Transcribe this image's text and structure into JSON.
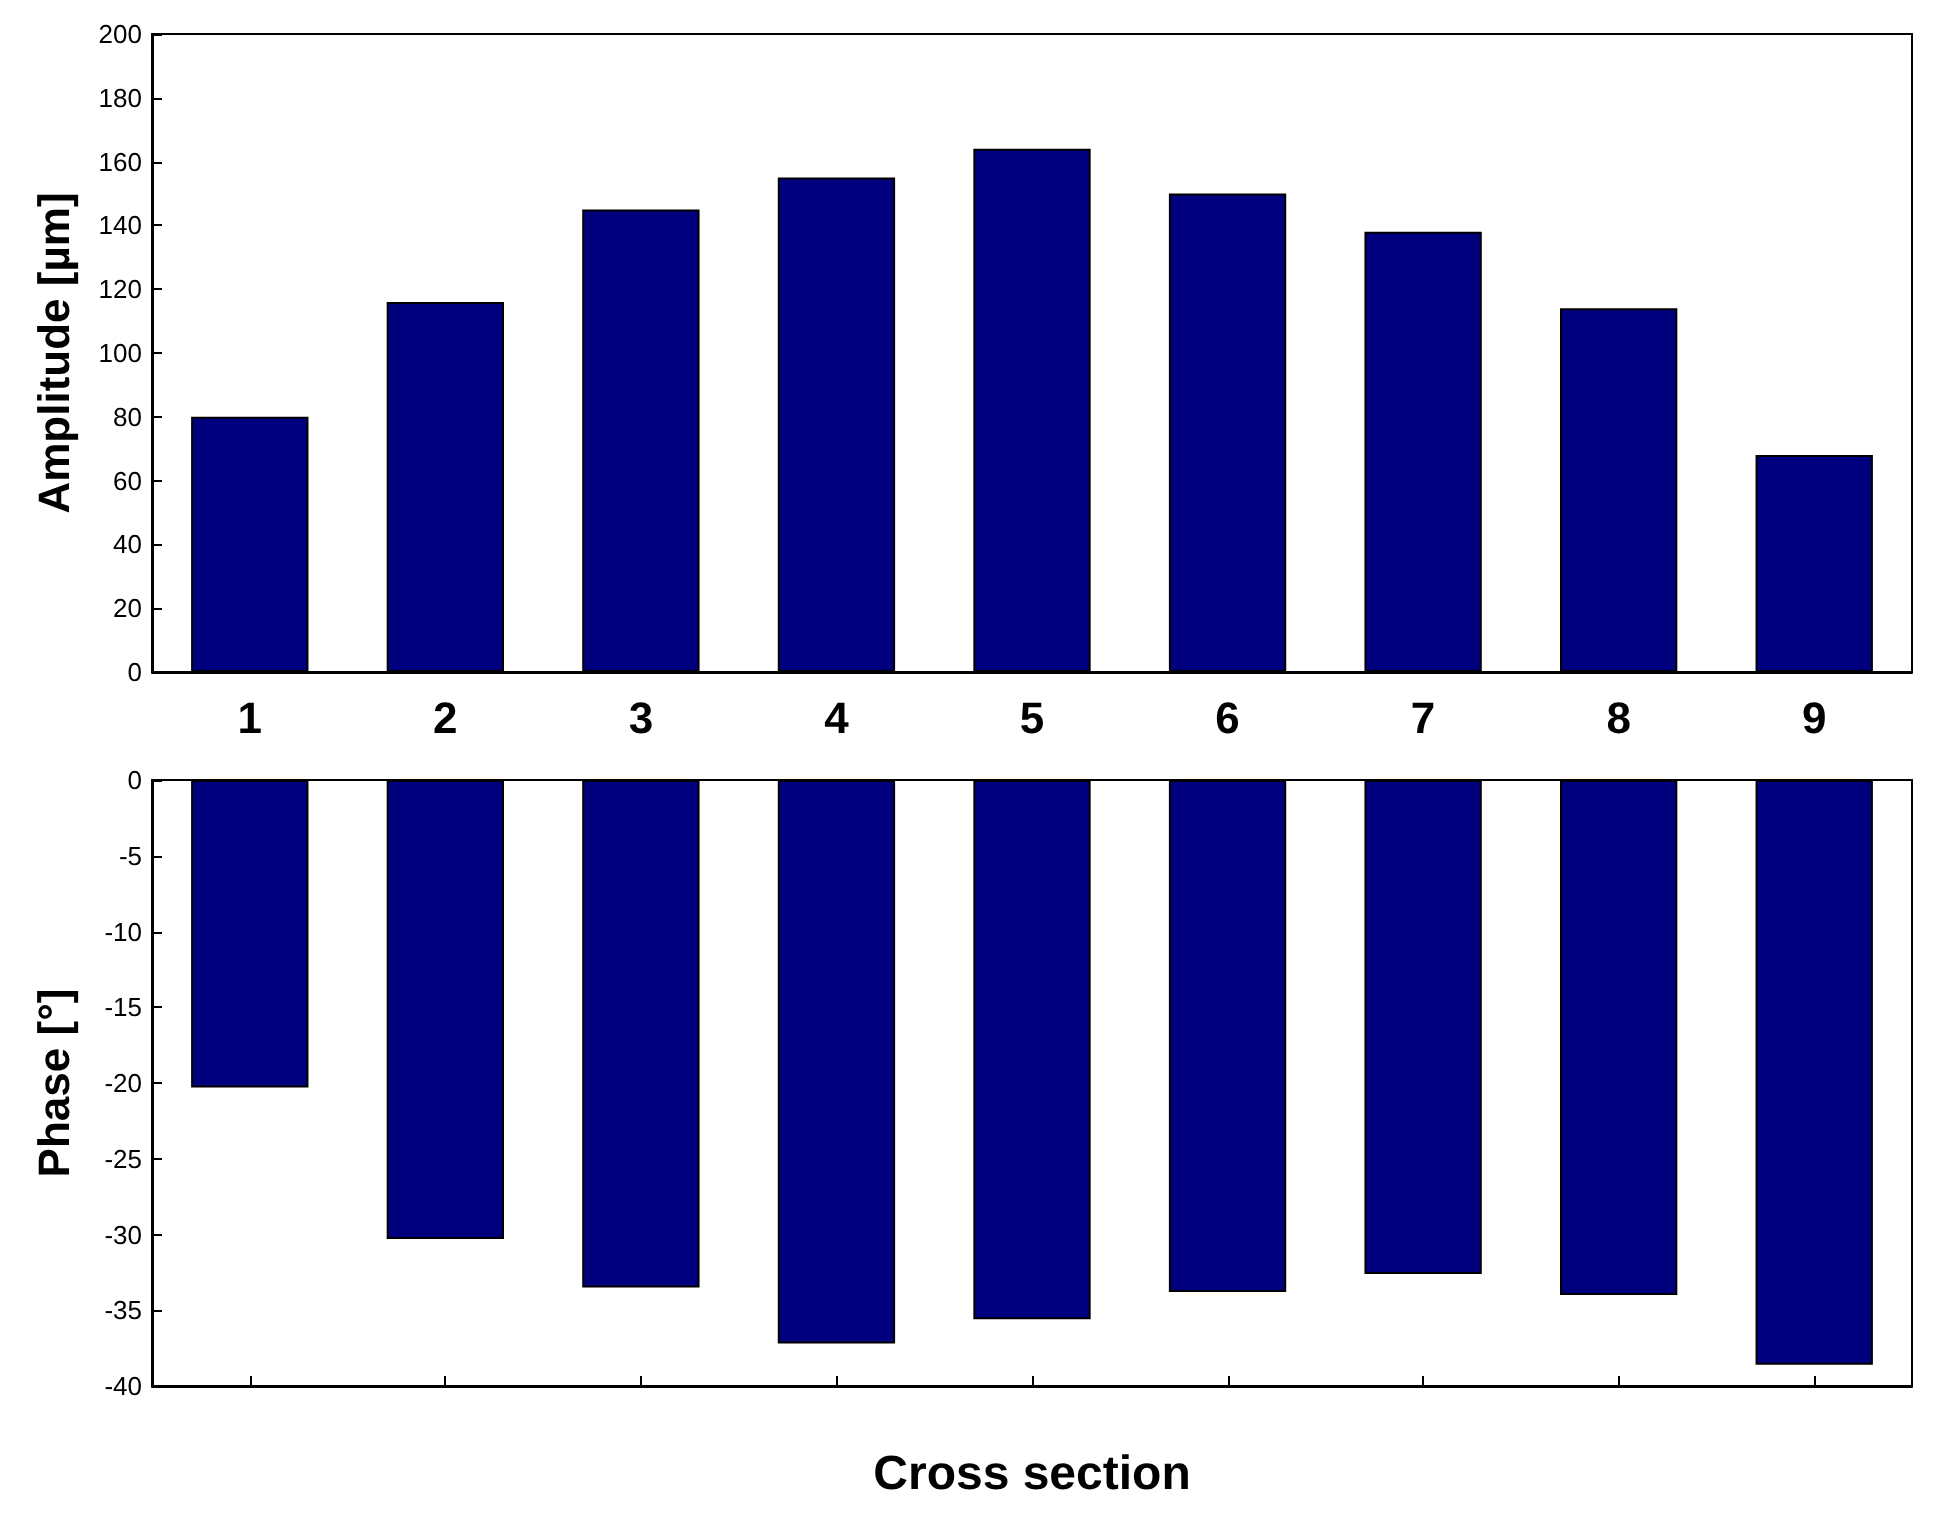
{
  "chart_data": [
    {
      "type": "bar",
      "categories": [
        "1",
        "2",
        "3",
        "4",
        "5",
        "6",
        "7",
        "8",
        "9"
      ],
      "values": [
        80,
        116,
        145,
        155,
        164,
        150,
        138,
        114,
        68
      ],
      "color": "#00007f",
      "ylabel": "Amplitude [µm]",
      "ylim": [
        0,
        200
      ],
      "yticks": [
        0,
        20,
        40,
        60,
        80,
        100,
        120,
        140,
        160,
        180,
        200
      ]
    },
    {
      "type": "bar",
      "categories": [
        "1",
        "2",
        "3",
        "4",
        "5",
        "6",
        "7",
        "8",
        "9"
      ],
      "values": [
        -20.3,
        -30.3,
        -33.5,
        -37.2,
        -35.6,
        -33.8,
        -32.6,
        -34,
        -38.6
      ],
      "color": "#00007f",
      "ylabel": "Phase [°]",
      "xlabel": "Cross section",
      "ylim": [
        -40,
        0
      ],
      "yticks": [
        -40,
        -35,
        -30,
        -25,
        -20,
        -15,
        -10,
        -5,
        0
      ],
      "tick_labels": "y"
    }
  ]
}
